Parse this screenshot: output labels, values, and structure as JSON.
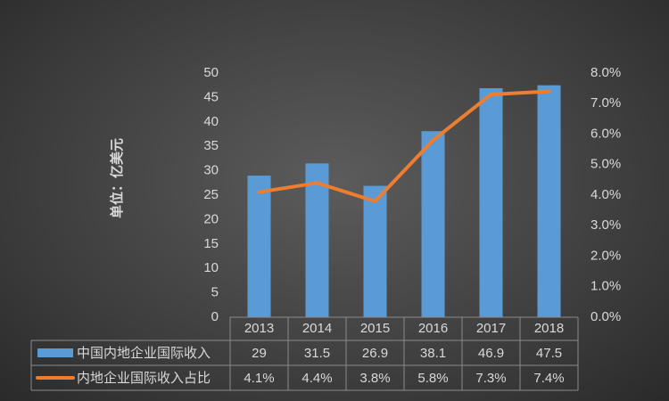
{
  "chart_data": {
    "type": "bar",
    "y_axis_label": "单位：亿美元",
    "categories": [
      "2013",
      "2014",
      "2015",
      "2016",
      "2017",
      "2018"
    ],
    "series": [
      {
        "name": "中国内地企业国际收入",
        "color": "#5b9bd5",
        "values": [
          29,
          31.5,
          26.9,
          38.1,
          46.9,
          47.5
        ]
      },
      {
        "name": "内地企业国际收入占比",
        "type": "line",
        "axis": "y2",
        "color": "#ed7d31",
        "values": [
          4.1,
          4.4,
          3.8,
          5.8,
          7.3,
          7.4
        ],
        "value_labels": [
          "4.1%",
          "4.4%",
          "3.8%",
          "5.8%",
          "7.3%",
          "7.4%"
        ]
      }
    ],
    "ylim": [
      0,
      50
    ],
    "yticks": [
      0,
      5,
      10,
      15,
      20,
      25,
      30,
      35,
      40,
      45,
      50
    ],
    "y2lim": [
      0,
      8
    ],
    "y2ticks": [
      {
        "value": 0,
        "label": "0.0%"
      },
      {
        "value": 1,
        "label": "1.0%"
      },
      {
        "value": 2,
        "label": "2.0%"
      },
      {
        "value": 3,
        "label": "3.0%"
      },
      {
        "value": 4,
        "label": "4.0%"
      },
      {
        "value": 5,
        "label": "5.0%"
      },
      {
        "value": 6,
        "label": "6.0%"
      },
      {
        "value": 7,
        "label": "7.0%"
      },
      {
        "value": 8,
        "label": "8.0%"
      }
    ],
    "data_table": true
  }
}
